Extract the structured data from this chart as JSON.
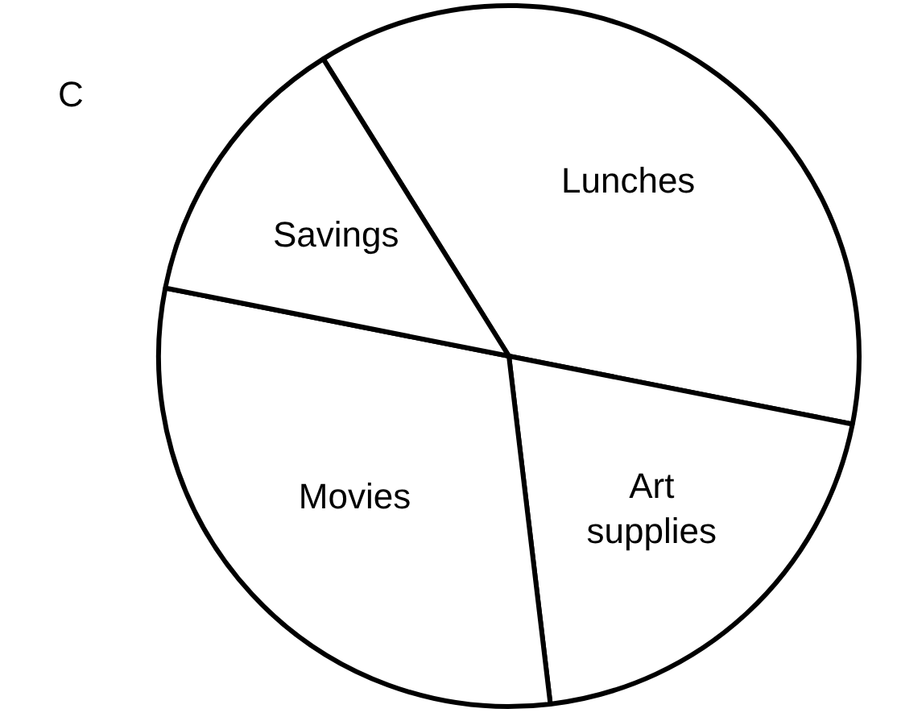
{
  "chart_data": {
    "type": "pie",
    "categories": [
      "Lunches",
      "Art supplies",
      "Movies",
      "Savings"
    ],
    "values": [
      37,
      20,
      30,
      13
    ],
    "colors": [
      "#ffffff",
      "#ffffff",
      "#ffffff",
      "#ffffff"
    ],
    "legend": false,
    "data_labels": false,
    "annotations": [
      "C"
    ]
  }
}
